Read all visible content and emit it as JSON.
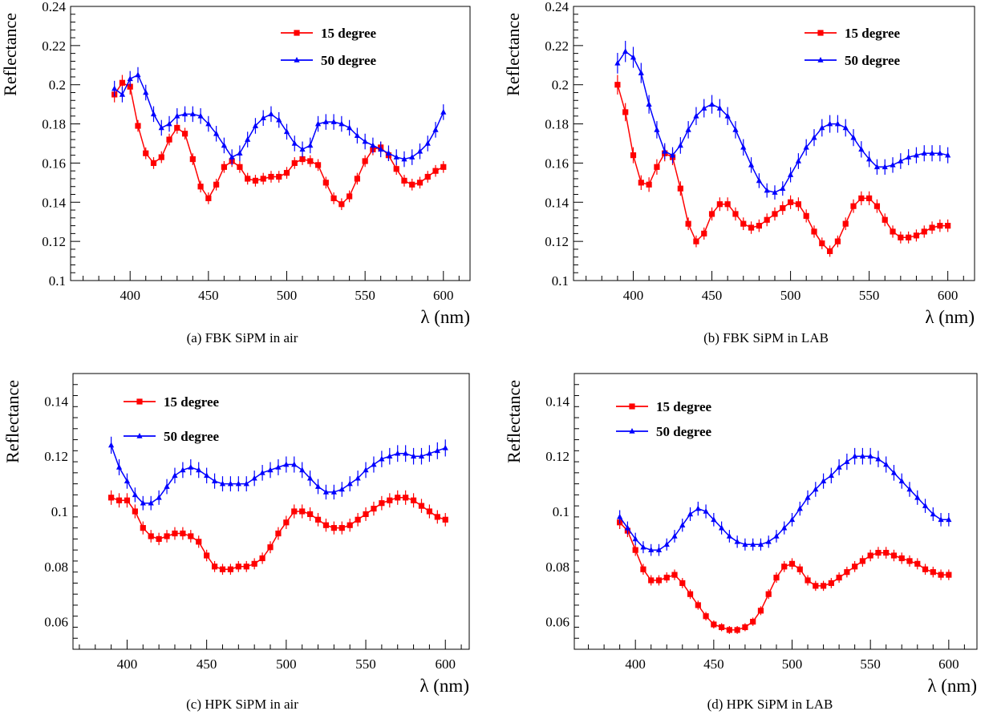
{
  "chart_data": [
    {
      "type": "line",
      "caption": "(a)  FBK SiPM in air",
      "xlabel": "λ (nm)",
      "ylabel": "Reflectance",
      "xlim": [
        362,
        617
      ],
      "ylim": [
        0.1,
        0.24
      ],
      "xticks": [
        400,
        450,
        500,
        550,
        600
      ],
      "yticks": [
        0.1,
        0.12,
        0.14,
        0.16,
        0.18,
        0.2,
        0.22,
        0.24
      ],
      "ytick_labels": [
        "0.1",
        "0.12",
        "0.14",
        "0.16",
        "0.18",
        "0.2",
        "0.22",
        "0.24"
      ],
      "grid": false,
      "legend_position": "top-right",
      "series": [
        {
          "name": "15 degree",
          "color": "#ff0000",
          "marker": "square",
          "x": [
            390,
            395,
            400,
            405,
            410,
            415,
            420,
            425,
            430,
            435,
            440,
            445,
            450,
            455,
            460,
            465,
            470,
            475,
            480,
            485,
            490,
            495,
            500,
            505,
            510,
            515,
            520,
            525,
            530,
            535,
            540,
            545,
            550,
            555,
            560,
            565,
            570,
            575,
            580,
            585,
            590,
            595,
            600
          ],
          "y": [
            0.195,
            0.201,
            0.199,
            0.179,
            0.165,
            0.16,
            0.163,
            0.172,
            0.178,
            0.175,
            0.162,
            0.148,
            0.142,
            0.149,
            0.158,
            0.161,
            0.158,
            0.152,
            0.151,
            0.152,
            0.153,
            0.153,
            0.155,
            0.16,
            0.162,
            0.161,
            0.159,
            0.15,
            0.142,
            0.139,
            0.143,
            0.152,
            0.161,
            0.167,
            0.168,
            0.164,
            0.157,
            0.151,
            0.149,
            0.15,
            0.153,
            0.156,
            0.158
          ],
          "err": [
            0.004,
            0.004,
            0.004,
            0.003,
            0.003,
            0.003,
            0.003,
            0.003,
            0.003,
            0.003,
            0.003,
            0.003,
            0.003,
            0.003,
            0.003,
            0.003,
            0.003,
            0.003,
            0.003,
            0.003,
            0.003,
            0.003,
            0.003,
            0.003,
            0.003,
            0.003,
            0.003,
            0.003,
            0.003,
            0.003,
            0.003,
            0.003,
            0.003,
            0.003,
            0.003,
            0.003,
            0.003,
            0.003,
            0.003,
            0.003,
            0.003,
            0.003,
            0.003
          ]
        },
        {
          "name": "50 degree",
          "color": "#0000ff",
          "marker": "triangle",
          "x": [
            390,
            395,
            400,
            405,
            410,
            415,
            420,
            425,
            430,
            435,
            440,
            445,
            450,
            455,
            460,
            465,
            470,
            475,
            480,
            485,
            490,
            495,
            500,
            505,
            510,
            515,
            520,
            525,
            530,
            535,
            540,
            545,
            550,
            555,
            560,
            565,
            570,
            575,
            580,
            585,
            590,
            595,
            600
          ],
          "y": [
            0.198,
            0.195,
            0.203,
            0.205,
            0.196,
            0.185,
            0.178,
            0.18,
            0.184,
            0.185,
            0.185,
            0.184,
            0.18,
            0.175,
            0.169,
            0.163,
            0.165,
            0.172,
            0.179,
            0.183,
            0.185,
            0.182,
            0.176,
            0.17,
            0.167,
            0.169,
            0.18,
            0.181,
            0.181,
            0.18,
            0.178,
            0.174,
            0.171,
            0.169,
            0.167,
            0.165,
            0.163,
            0.162,
            0.163,
            0.166,
            0.17,
            0.177,
            0.186
          ],
          "err": [
            0.004,
            0.004,
            0.004,
            0.004,
            0.004,
            0.004,
            0.004,
            0.004,
            0.004,
            0.004,
            0.004,
            0.004,
            0.004,
            0.004,
            0.004,
            0.004,
            0.004,
            0.004,
            0.004,
            0.004,
            0.004,
            0.004,
            0.004,
            0.004,
            0.004,
            0.004,
            0.004,
            0.004,
            0.004,
            0.004,
            0.004,
            0.004,
            0.004,
            0.004,
            0.004,
            0.004,
            0.004,
            0.004,
            0.004,
            0.004,
            0.004,
            0.004,
            0.004
          ]
        }
      ]
    },
    {
      "type": "line",
      "caption": "(b)  FBK SiPM in LAB",
      "xlabel": "λ (nm)",
      "ylabel": "Reflectance",
      "xlim": [
        362,
        617
      ],
      "ylim": [
        0.1,
        0.24
      ],
      "xticks": [
        400,
        450,
        500,
        550,
        600
      ],
      "yticks": [
        0.1,
        0.12,
        0.14,
        0.16,
        0.18,
        0.2,
        0.22,
        0.24
      ],
      "ytick_labels": [
        "0.1",
        "0.12",
        "0.14",
        "0.16",
        "0.18",
        "0.2",
        "0.22",
        "0.24"
      ],
      "grid": false,
      "legend_position": "top-right",
      "series": [
        {
          "name": "15 degree",
          "color": "#ff0000",
          "marker": "square",
          "x": [
            390,
            395,
            400,
            405,
            410,
            415,
            420,
            425,
            430,
            435,
            440,
            445,
            450,
            455,
            460,
            465,
            470,
            475,
            480,
            485,
            490,
            495,
            500,
            505,
            510,
            515,
            520,
            525,
            530,
            535,
            540,
            545,
            550,
            555,
            560,
            565,
            570,
            575,
            580,
            585,
            590,
            595,
            600
          ],
          "y": [
            0.2,
            0.186,
            0.164,
            0.15,
            0.149,
            0.158,
            0.165,
            0.163,
            0.147,
            0.129,
            0.12,
            0.124,
            0.134,
            0.139,
            0.139,
            0.134,
            0.129,
            0.127,
            0.128,
            0.131,
            0.134,
            0.137,
            0.14,
            0.139,
            0.133,
            0.125,
            0.119,
            0.115,
            0.12,
            0.129,
            0.138,
            0.142,
            0.142,
            0.138,
            0.131,
            0.125,
            0.122,
            0.122,
            0.123,
            0.125,
            0.127,
            0.128,
            0.128
          ]
        },
        {
          "name": "50 degree",
          "color": "#0000ff",
          "marker": "triangle",
          "x": [
            390,
            395,
            400,
            405,
            410,
            415,
            420,
            425,
            430,
            435,
            440,
            445,
            450,
            455,
            460,
            465,
            470,
            475,
            480,
            485,
            490,
            495,
            500,
            505,
            510,
            515,
            520,
            525,
            530,
            535,
            540,
            545,
            550,
            555,
            560,
            565,
            570,
            575,
            580,
            585,
            590,
            595,
            600
          ],
          "y": [
            0.211,
            0.217,
            0.214,
            0.206,
            0.19,
            0.177,
            0.166,
            0.164,
            0.169,
            0.177,
            0.184,
            0.188,
            0.19,
            0.188,
            0.184,
            0.177,
            0.168,
            0.159,
            0.151,
            0.146,
            0.145,
            0.147,
            0.154,
            0.161,
            0.168,
            0.173,
            0.178,
            0.18,
            0.18,
            0.178,
            0.173,
            0.167,
            0.162,
            0.158,
            0.158,
            0.159,
            0.161,
            0.163,
            0.164,
            0.165,
            0.165,
            0.165,
            0.164
          ]
        }
      ]
    },
    {
      "type": "line",
      "caption": "(c)  HPK SiPM in air",
      "xlabel": "λ (nm)",
      "ylabel": "Reflectance",
      "xlim": [
        366,
        615
      ],
      "ylim": [
        0.05,
        0.15
      ],
      "xticks": [
        400,
        450,
        500,
        550,
        600
      ],
      "yticks": [
        0.06,
        0.08,
        0.1,
        0.12,
        0.14
      ],
      "ytick_labels": [
        "0.06",
        "0.08",
        "0.1",
        "0.12",
        "0.14"
      ],
      "grid": false,
      "legend_position": "top-left",
      "series": [
        {
          "name": "15 degree",
          "color": "#ff0000",
          "marker": "square",
          "x": [
            390,
            395,
            400,
            405,
            410,
            415,
            420,
            425,
            430,
            435,
            440,
            445,
            450,
            455,
            460,
            465,
            470,
            475,
            480,
            485,
            490,
            495,
            500,
            505,
            510,
            515,
            520,
            525,
            530,
            535,
            540,
            545,
            550,
            555,
            560,
            565,
            570,
            575,
            580,
            585,
            590,
            595,
            600
          ],
          "y": [
            0.105,
            0.104,
            0.104,
            0.1,
            0.094,
            0.091,
            0.09,
            0.091,
            0.092,
            0.092,
            0.091,
            0.089,
            0.084,
            0.08,
            0.079,
            0.079,
            0.08,
            0.08,
            0.081,
            0.083,
            0.087,
            0.092,
            0.096,
            0.1,
            0.1,
            0.099,
            0.097,
            0.095,
            0.094,
            0.094,
            0.095,
            0.097,
            0.099,
            0.101,
            0.103,
            0.104,
            0.105,
            0.105,
            0.104,
            0.102,
            0.1,
            0.098,
            0.097
          ]
        },
        {
          "name": "50 degree",
          "color": "#0000ff",
          "marker": "triangle",
          "x": [
            390,
            395,
            400,
            405,
            410,
            415,
            420,
            425,
            430,
            435,
            440,
            445,
            450,
            455,
            460,
            465,
            470,
            475,
            480,
            485,
            490,
            495,
            500,
            505,
            510,
            515,
            520,
            525,
            530,
            535,
            540,
            545,
            550,
            555,
            560,
            565,
            570,
            575,
            580,
            585,
            590,
            595,
            600
          ],
          "y": [
            0.124,
            0.116,
            0.111,
            0.106,
            0.103,
            0.103,
            0.105,
            0.109,
            0.113,
            0.115,
            0.116,
            0.115,
            0.113,
            0.111,
            0.11,
            0.11,
            0.11,
            0.11,
            0.112,
            0.114,
            0.115,
            0.116,
            0.117,
            0.117,
            0.115,
            0.112,
            0.109,
            0.107,
            0.107,
            0.108,
            0.11,
            0.112,
            0.115,
            0.117,
            0.119,
            0.12,
            0.121,
            0.121,
            0.12,
            0.12,
            0.121,
            0.122,
            0.123
          ]
        }
      ]
    },
    {
      "type": "line",
      "caption": "(d)  HPK SiPM in LAB",
      "xlabel": "λ (nm)",
      "ylabel": "Reflectance",
      "xlim": [
        361,
        618
      ],
      "ylim": [
        0.05,
        0.15
      ],
      "xticks": [
        400,
        450,
        500,
        550,
        600
      ],
      "yticks": [
        0.06,
        0.08,
        0.1,
        0.12,
        0.14
      ],
      "ytick_labels": [
        "0.06",
        "0.08",
        "0.1",
        "0.12",
        "0.14"
      ],
      "grid": false,
      "legend_position": "top-left",
      "series": [
        {
          "name": "15 degree",
          "color": "#ff0000",
          "marker": "square",
          "x": [
            390,
            395,
            400,
            405,
            410,
            415,
            420,
            425,
            430,
            435,
            440,
            445,
            450,
            455,
            460,
            465,
            470,
            475,
            480,
            485,
            490,
            495,
            500,
            505,
            510,
            515,
            520,
            525,
            530,
            535,
            540,
            545,
            550,
            555,
            560,
            565,
            570,
            575,
            580,
            585,
            590,
            595,
            600
          ],
          "y": [
            0.096,
            0.093,
            0.086,
            0.079,
            0.075,
            0.075,
            0.076,
            0.077,
            0.074,
            0.07,
            0.066,
            0.062,
            0.059,
            0.058,
            0.057,
            0.057,
            0.058,
            0.06,
            0.064,
            0.07,
            0.076,
            0.08,
            0.081,
            0.079,
            0.075,
            0.073,
            0.073,
            0.074,
            0.076,
            0.078,
            0.08,
            0.082,
            0.084,
            0.085,
            0.085,
            0.084,
            0.083,
            0.082,
            0.081,
            0.079,
            0.078,
            0.077,
            0.077
          ]
        },
        {
          "name": "50 degree",
          "color": "#0000ff",
          "marker": "triangle",
          "x": [
            390,
            395,
            400,
            405,
            410,
            415,
            420,
            425,
            430,
            435,
            440,
            445,
            450,
            455,
            460,
            465,
            470,
            475,
            480,
            485,
            490,
            495,
            500,
            505,
            510,
            515,
            520,
            525,
            530,
            535,
            540,
            545,
            550,
            555,
            560,
            565,
            570,
            575,
            580,
            585,
            590,
            595,
            600
          ],
          "y": [
            0.098,
            0.094,
            0.09,
            0.087,
            0.086,
            0.086,
            0.088,
            0.091,
            0.095,
            0.099,
            0.101,
            0.1,
            0.097,
            0.094,
            0.091,
            0.089,
            0.088,
            0.088,
            0.088,
            0.089,
            0.091,
            0.094,
            0.097,
            0.101,
            0.105,
            0.108,
            0.111,
            0.113,
            0.116,
            0.118,
            0.12,
            0.12,
            0.12,
            0.119,
            0.117,
            0.114,
            0.111,
            0.108,
            0.105,
            0.102,
            0.099,
            0.097,
            0.097
          ]
        }
      ]
    }
  ]
}
